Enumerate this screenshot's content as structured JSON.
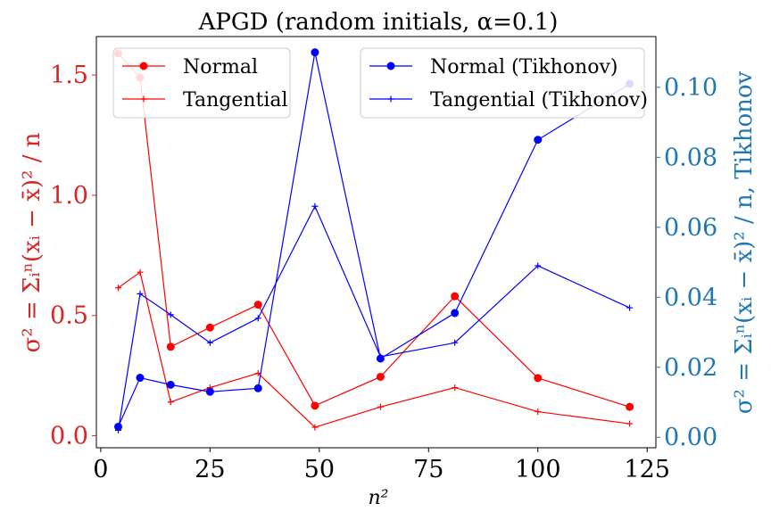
{
  "chart_data": {
    "type": "line",
    "title": "APGD (random initials, α=0.1)",
    "xlabel": "n²",
    "ylabel_left": "σ² = Σᵢⁿ(xᵢ − x̄)² / n",
    "ylabel_right": "σ² = Σᵢⁿ(xᵢ − x̄)² / n, Tikhonov",
    "xlim": [
      -1,
      127
    ],
    "ylim_left": [
      -0.05,
      1.66
    ],
    "ylim_right": [
      -0.003,
      0.1145
    ],
    "xticks": [
      "0",
      "25",
      "50",
      "75",
      "100",
      "125"
    ],
    "yticks_left": [
      "0.0",
      "0.5",
      "1.0",
      "1.5"
    ],
    "yticks_right": [
      "0.00",
      "0.02",
      "0.04",
      "0.06",
      "0.08",
      "0.10"
    ],
    "x": [
      4,
      9,
      16,
      25,
      36,
      49,
      64,
      81,
      100,
      121
    ],
    "series_left": [
      {
        "name": "Normal",
        "color": "#ff0000",
        "marker": "circle",
        "values": [
          1.59,
          1.49,
          0.37,
          0.45,
          0.545,
          0.125,
          0.245,
          0.58,
          0.24,
          0.12
        ]
      },
      {
        "name": "Tangential",
        "color": "#ff0000",
        "marker": "plus",
        "values": [
          0.615,
          0.68,
          0.14,
          0.2,
          0.26,
          0.035,
          0.12,
          0.2,
          0.1,
          0.05
        ]
      }
    ],
    "series_right": [
      {
        "name": "Normal (Tikhonov)",
        "color": "#0000ff",
        "marker": "circle",
        "values": [
          0.003,
          0.017,
          0.015,
          0.013,
          0.014,
          0.11,
          0.0225,
          0.0355,
          0.085,
          0.101
        ]
      },
      {
        "name": "Tangential (Tikhonov)",
        "color": "#0000ff",
        "marker": "plus",
        "values": [
          0.002,
          0.041,
          0.035,
          0.027,
          0.034,
          0.066,
          0.023,
          0.027,
          0.049,
          0.037
        ]
      }
    ],
    "legend_left_position": "upper-left",
    "legend_right_position": "upper-right",
    "grid": false
  }
}
